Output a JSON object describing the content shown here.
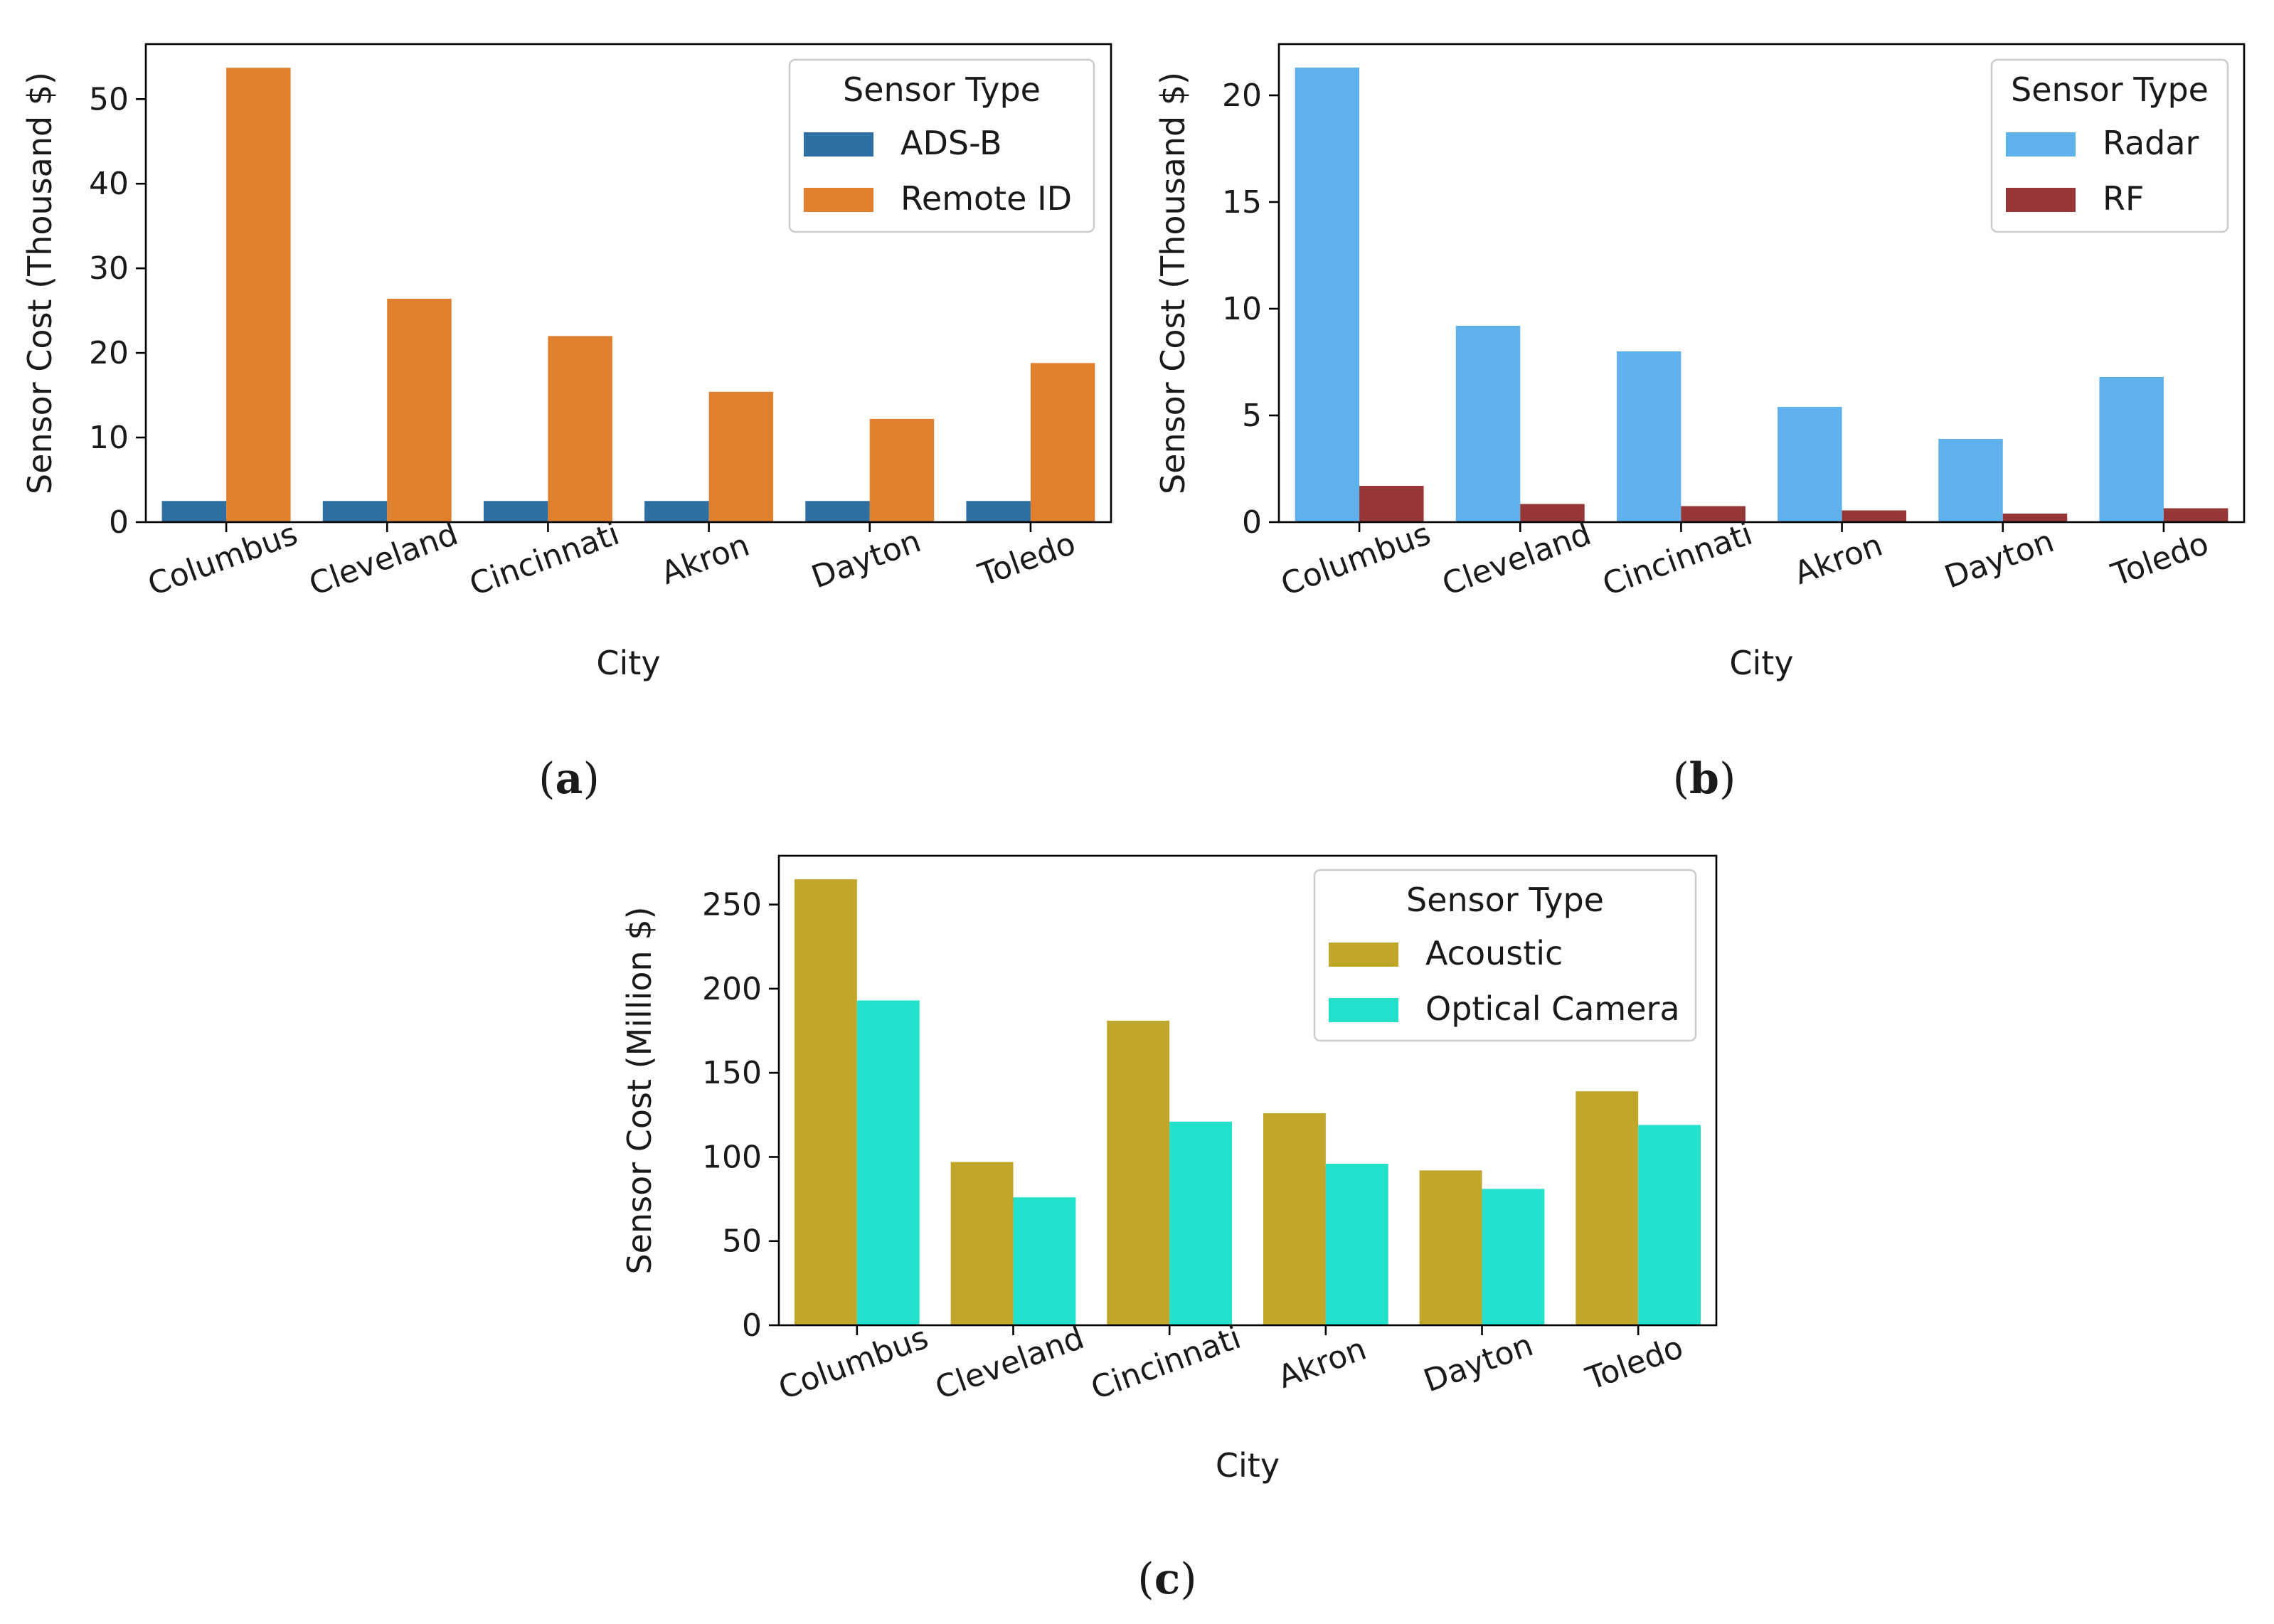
{
  "chart_data": [
    {
      "type": "bar",
      "panel_label": "a",
      "categories": [
        "Columbus",
        "Cleveland",
        "Cincinnati",
        "Akron",
        "Dayton",
        "Toledo"
      ],
      "series": [
        {
          "name": "ADS-B",
          "color": "#2e6fa1",
          "values": [
            2.5,
            2.5,
            2.5,
            2.5,
            2.5,
            2.5
          ]
        },
        {
          "name": "Remote ID",
          "color": "#e0802e",
          "values": [
            53.7,
            26.4,
            22.0,
            15.4,
            12.2,
            18.8
          ]
        }
      ],
      "legend_title": "Sensor Type",
      "legend_position": "top-right",
      "xlabel": "City",
      "ylabel": "Sensor Cost (Thousand $)",
      "ylim": [
        0,
        56.5
      ],
      "yticks": [
        0,
        10,
        20,
        30,
        40,
        50
      ]
    },
    {
      "type": "bar",
      "panel_label": "b",
      "categories": [
        "Columbus",
        "Cleveland",
        "Cincinnati",
        "Akron",
        "Dayton",
        "Toledo"
      ],
      "series": [
        {
          "name": "Radar",
          "color": "#5eb1ea",
          "values": [
            21.3,
            9.2,
            8.0,
            5.4,
            3.9,
            6.8
          ]
        },
        {
          "name": "RF",
          "color": "#953737",
          "values": [
            1.7,
            0.85,
            0.75,
            0.55,
            0.4,
            0.65
          ]
        }
      ],
      "legend_title": "Sensor Type",
      "legend_position": "top-right",
      "xlabel": "City",
      "ylabel": "Sensor Cost (Thousand $)",
      "ylim": [
        0,
        22.4
      ],
      "yticks": [
        0,
        5,
        10,
        15,
        20
      ]
    },
    {
      "type": "bar",
      "panel_label": "c",
      "categories": [
        "Columbus",
        "Cleveland",
        "Cincinnati",
        "Akron",
        "Dayton",
        "Toledo"
      ],
      "series": [
        {
          "name": "Acoustic",
          "color": "#c0a62b",
          "values": [
            265,
            97,
            181,
            126,
            92,
            139
          ]
        },
        {
          "name": "Optical Camera",
          "color": "#23e0cb",
          "values": [
            193,
            76,
            121,
            96,
            81,
            119
          ]
        }
      ],
      "legend_title": "Sensor Type",
      "legend_position": "top-right",
      "xlabel": "City",
      "ylabel": "Sensor Cost (Million $)",
      "ylim": [
        0,
        279
      ],
      "yticks": [
        0,
        50,
        100,
        150,
        200,
        250
      ]
    }
  ]
}
